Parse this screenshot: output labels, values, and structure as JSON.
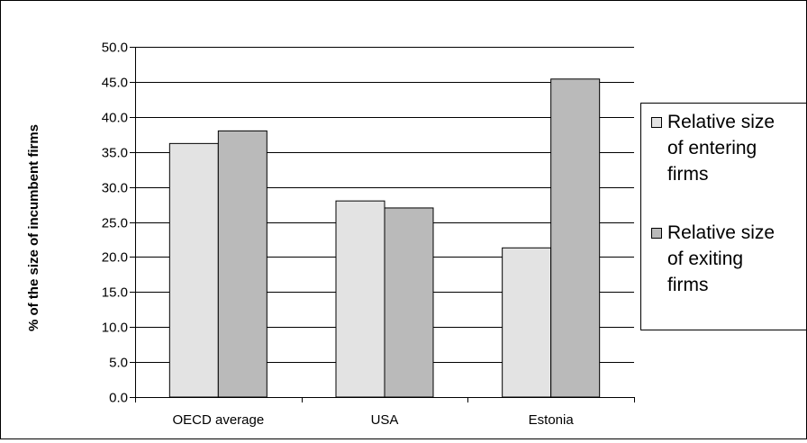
{
  "chart_data": {
    "type": "bar",
    "title": "",
    "xlabel": "",
    "ylabel": "% of the size of incumbent firms",
    "categories": [
      "OECD average",
      "USA",
      "Estonia"
    ],
    "ylim": [
      0,
      50
    ],
    "ytick_labels": [
      "0.0",
      "5.0",
      "10.0",
      "15.0",
      "20.0",
      "25.0",
      "30.0",
      "35.0",
      "40.0",
      "45.0",
      "50.0"
    ],
    "grid": true,
    "legend_position": "right",
    "series": [
      {
        "name": "Relative size of entering firms",
        "legend_lines": [
          "Relative size",
          "of entering",
          "firms"
        ],
        "color": "#e3e3e3",
        "values": [
          36.2,
          28.0,
          21.3
        ]
      },
      {
        "name": "Relative size of exiting firms",
        "legend_lines": [
          "Relative size",
          "of exiting",
          "firms"
        ],
        "color": "#bababa",
        "values": [
          38.0,
          27.0,
          45.4
        ]
      }
    ]
  }
}
